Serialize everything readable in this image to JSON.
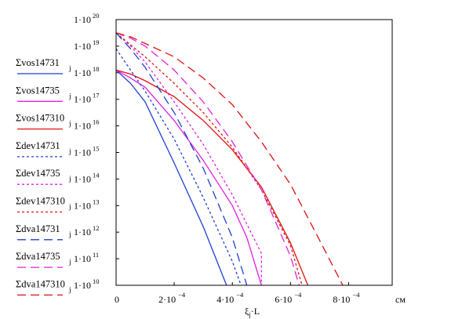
{
  "chart_data": {
    "type": "line",
    "title": "",
    "xlabel": "ξ",
    "xlabel_sub": "j",
    "xlabel_suffix": "·L",
    "x_unit": "см",
    "xlim": [
      0,
      0.00095
    ],
    "ylim_log10": [
      10,
      20
    ],
    "y_scale": "log",
    "x_ticks": [
      {
        "value": 0,
        "mantissa": "0",
        "exponent": ""
      },
      {
        "value": 0.0002,
        "mantissa": "2·10",
        "exponent": "−4"
      },
      {
        "value": 0.0004,
        "mantissa": "4·10",
        "exponent": "−4"
      },
      {
        "value": 0.0006,
        "mantissa": "6·10",
        "exponent": "−4"
      },
      {
        "value": 0.0008,
        "mantissa": "8·10",
        "exponent": "−4"
      }
    ],
    "y_ticks": [
      {
        "log10": 20,
        "mantissa": "1·10",
        "exponent": "20"
      },
      {
        "log10": 19,
        "mantissa": "1·10",
        "exponent": "19"
      },
      {
        "log10": 18,
        "mantissa": "1·10",
        "exponent": "18"
      },
      {
        "log10": 17,
        "mantissa": "1·10",
        "exponent": "17"
      },
      {
        "log10": 16,
        "mantissa": "1·10",
        "exponent": "16"
      },
      {
        "log10": 15,
        "mantissa": "1·10",
        "exponent": "15"
      },
      {
        "log10": 14,
        "mantissa": "1·10",
        "exponent": "14"
      },
      {
        "log10": 13,
        "mantissa": "1·10",
        "exponent": "13"
      },
      {
        "log10": 12,
        "mantissa": "1·10",
        "exponent": "12"
      },
      {
        "log10": 11,
        "mantissa": "1·10",
        "exponent": "11"
      },
      {
        "log10": 10,
        "mantissa": "1·10",
        "exponent": "10"
      }
    ],
    "legend_position": "left",
    "series": [
      {
        "name": "Σvos14731",
        "subscript": "j",
        "color": "#1f3fd0",
        "dash": "solid",
        "x": [
          0,
          5e-05,
          0.0001,
          0.0002,
          0.0003,
          0.00038
        ],
        "y_log10": [
          18.1,
          17.6,
          16.9,
          14.6,
          12.2,
          10.0
        ]
      },
      {
        "name": "Σvos14735",
        "subscript": "j",
        "color": "#e020e0",
        "dash": "solid",
        "x": [
          0,
          5e-05,
          0.0001,
          0.0002,
          0.0003,
          0.0004,
          0.00045,
          0.0005
        ],
        "y_log10": [
          18.1,
          17.8,
          17.45,
          16.2,
          14.7,
          13.0,
          11.8,
          10.0
        ]
      },
      {
        "name": "Σvos147310",
        "subscript": "j",
        "color": "#e01010",
        "dash": "solid",
        "x": [
          0,
          5e-05,
          0.0001,
          0.0002,
          0.0003,
          0.0004,
          0.0005,
          0.0006,
          0.00066
        ],
        "y_log10": [
          18.1,
          17.95,
          17.7,
          17.1,
          16.2,
          15.1,
          13.7,
          11.6,
          10.0
        ]
      },
      {
        "name": "Σdev14731",
        "subscript": "j",
        "color": "#1f3fd0",
        "dash": "dot",
        "x": [
          0,
          5e-05,
          0.0001,
          0.0002,
          0.0003,
          0.0004,
          0.00043
        ],
        "y_log10": [
          18.9,
          18.1,
          17.3,
          15.5,
          13.3,
          10.9,
          10.0
        ]
      },
      {
        "name": "Σdev14735",
        "subscript": "j",
        "color": "#e020e0",
        "dash": "dot",
        "x": [
          0,
          5e-05,
          0.0001,
          0.0002,
          0.0003,
          0.0004,
          0.0005,
          0.0005
        ],
        "y_log10": [
          19.5,
          19.0,
          18.4,
          16.9,
          15.3,
          13.4,
          11.2,
          10.0
        ]
      },
      {
        "name": "Σdev147310",
        "subscript": "j",
        "color": "#e01010",
        "dash": "dot",
        "x": [
          0,
          5e-05,
          0.0001,
          0.0002,
          0.0003,
          0.0004,
          0.0005,
          0.0006,
          0.00064
        ],
        "y_log10": [
          19.5,
          19.05,
          18.6,
          17.6,
          16.5,
          15.2,
          13.6,
          11.5,
          10.0
        ]
      },
      {
        "name": "Σdva14731",
        "subscript": "j",
        "color": "#1f3fd0",
        "dash": "dash",
        "x": [
          0,
          5e-05,
          0.0001,
          0.0002,
          0.0003,
          0.0004,
          0.00045
        ],
        "y_log10": [
          19.5,
          18.9,
          18.2,
          16.5,
          14.4,
          11.8,
          10.0
        ]
      },
      {
        "name": "Σdva14735",
        "subscript": "j",
        "color": "#e020e0",
        "dash": "dash",
        "x": [
          0,
          5e-05,
          0.0001,
          0.0002,
          0.0003,
          0.0004,
          0.0005,
          0.0006,
          0.00063
        ],
        "y_log10": [
          19.5,
          19.3,
          19.0,
          18.1,
          16.9,
          15.4,
          13.6,
          11.1,
          10.0
        ]
      },
      {
        "name": "Σdva147310",
        "subscript": "j",
        "color": "#e01010",
        "dash": "dash",
        "x": [
          0,
          5e-05,
          0.0001,
          0.0002,
          0.0003,
          0.0004,
          0.0005,
          0.0006,
          0.0007,
          0.00078
        ],
        "y_log10": [
          19.5,
          19.35,
          19.1,
          18.6,
          17.8,
          16.8,
          15.4,
          13.8,
          11.7,
          10.0
        ]
      }
    ]
  }
}
